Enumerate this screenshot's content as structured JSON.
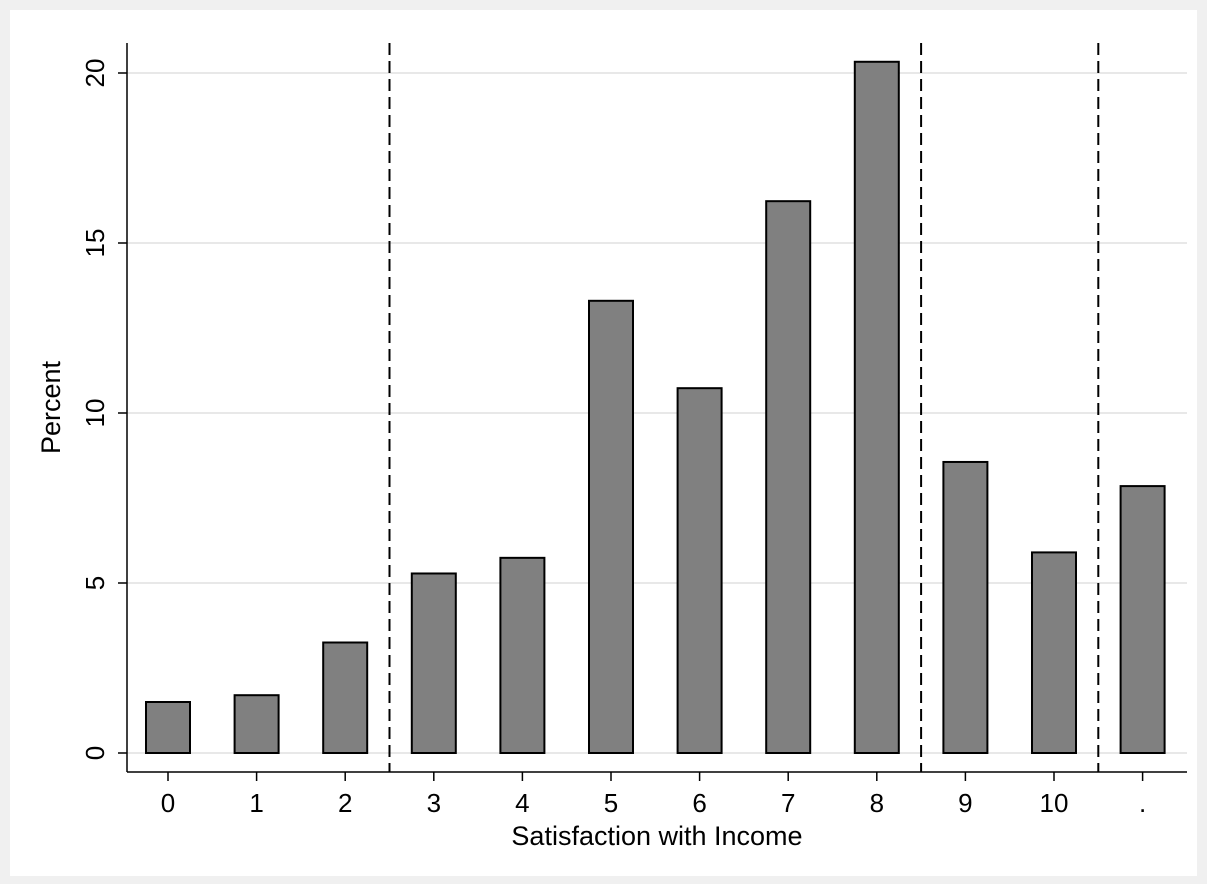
{
  "chart_data": {
    "type": "bar",
    "title": "",
    "xlabel": "Satisfaction with Income",
    "ylabel": "Percent",
    "categories": [
      "0",
      "1",
      "2",
      "3",
      "4",
      "5",
      "6",
      "7",
      "8",
      "9",
      "10",
      "."
    ],
    "values": [
      1.5,
      1.7,
      3.25,
      5.28,
      5.74,
      13.3,
      10.73,
      16.23,
      20.33,
      8.56,
      5.9,
      7.85
    ],
    "ylim": [
      0,
      20.9
    ],
    "yticks": [
      0,
      5,
      10,
      15,
      20
    ],
    "grid": true,
    "reference_lines_between": [
      [
        2,
        3
      ],
      [
        8,
        9
      ],
      [
        10,
        11
      ]
    ],
    "colors": {
      "bar_fill": "#808080",
      "bar_stroke": "#000000",
      "grid": "#e8e8e8",
      "plot_background": "#ffffff",
      "outer_background": "#f0f0f0"
    }
  }
}
